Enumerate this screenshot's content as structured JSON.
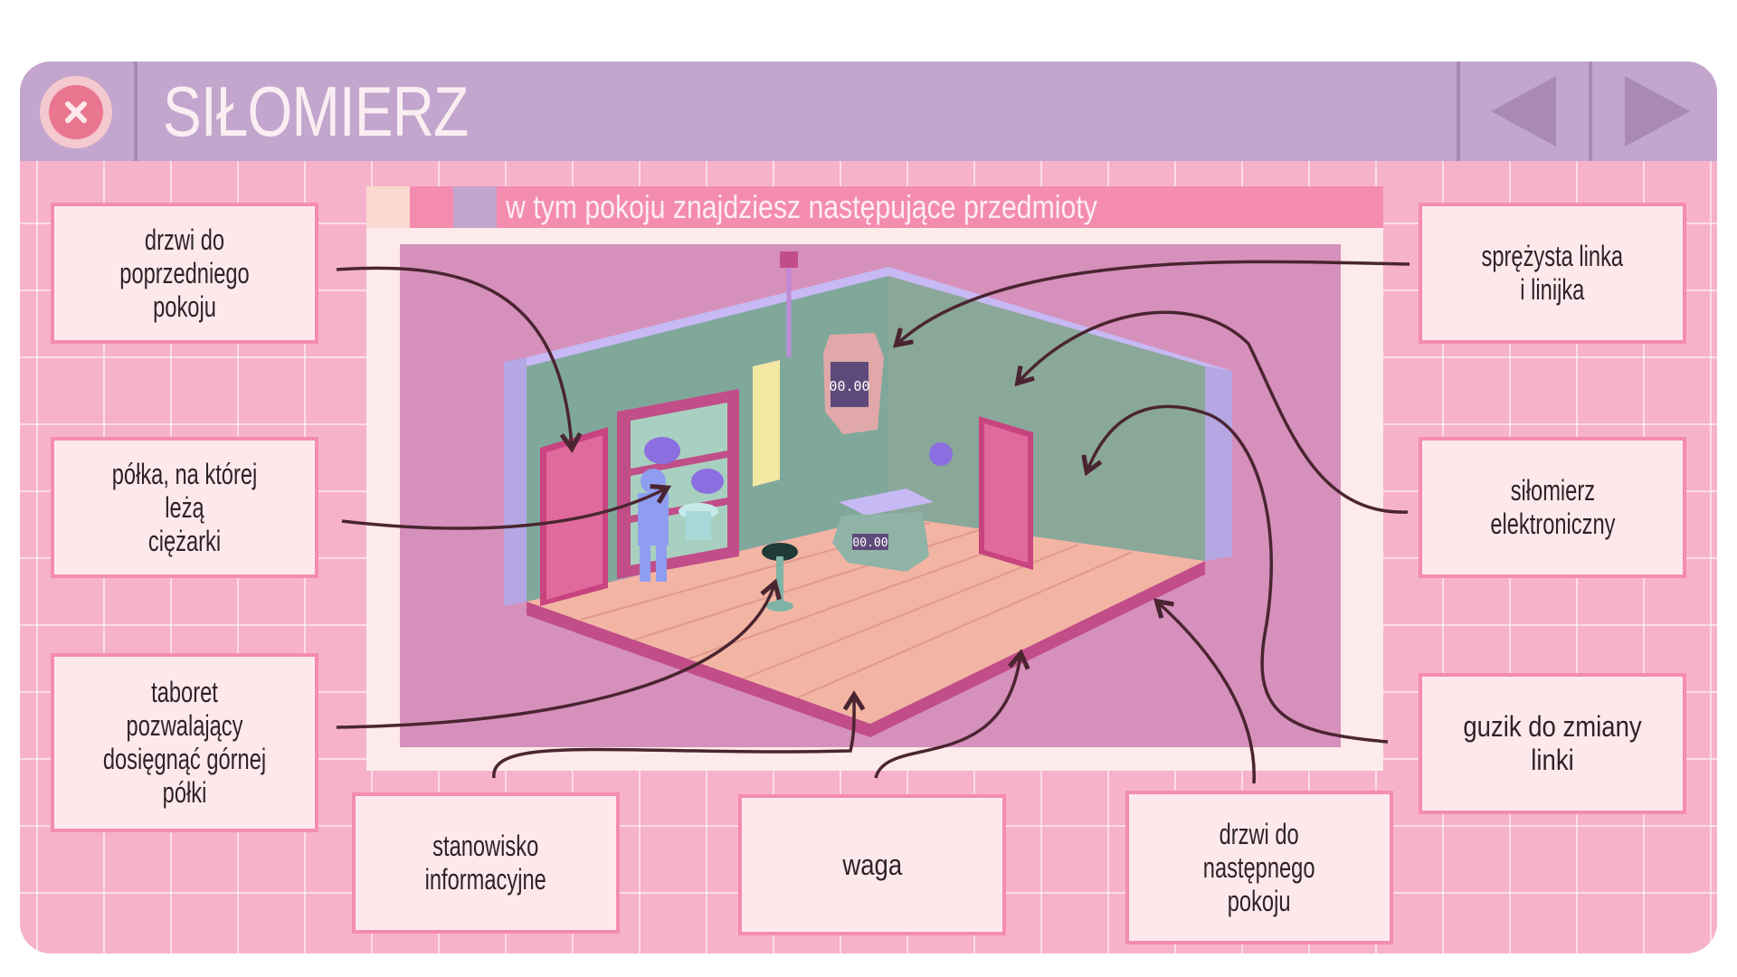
{
  "window": {
    "title": "SIŁOMIERZ",
    "close_icon": "close-icon",
    "prev_icon": "triangle-left-icon",
    "next_icon": "triangle-right-icon"
  },
  "scene": {
    "heading": "w tym pokoju znajdziesz następujące przedmioty",
    "display_1": "00.00",
    "display_2": "00.00"
  },
  "labels": {
    "door_prev_l1": "drzwi do",
    "door_prev_l2": "poprzedniego pokoju",
    "shelf_l1": "półka, na której leżą",
    "shelf_l2": "ciężarki",
    "stool_l1": "taboret pozwalający",
    "stool_l2": "dosięgnąć górnej",
    "stool_l3": "półki",
    "info_l1": "stanowisko",
    "info_l2": "informacyjne",
    "scale": "waga",
    "door_next_l1": "drzwi do",
    "door_next_l2": "następnego",
    "door_next_l3": "pokoju",
    "spring_l1": "sprężysta linka",
    "spring_l2": "i linijka",
    "dynamo_l1": "siłomierz",
    "dynamo_l2": "elektroniczny",
    "button": "guzik do zmiany linki"
  },
  "colors": {
    "background": "#f7b2cb",
    "titlebar": "#c2a6cd",
    "accent_pink": "#f48cb0",
    "label_fill": "#fde9ec",
    "arrow": "#4a2530"
  }
}
